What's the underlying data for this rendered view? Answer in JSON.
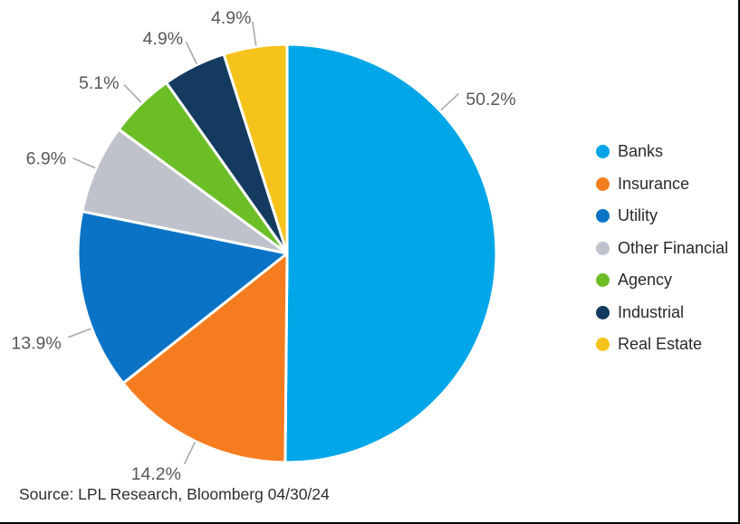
{
  "chart_data": {
    "type": "pie",
    "title": "",
    "categories": [
      "Banks",
      "Insurance",
      "Utility",
      "Other Financial",
      "Agency",
      "Industrial",
      "Real Estate"
    ],
    "values": [
      50.2,
      14.2,
      13.9,
      6.9,
      5.1,
      4.9,
      4.9
    ],
    "data_labels": [
      "50.2%",
      "14.2%",
      "13.9%",
      "6.9%",
      "5.1%",
      "4.9%",
      "4.9%"
    ],
    "colors": [
      "#00A6E8",
      "#F57D20",
      "#0A73C6",
      "#BFC2CA",
      "#6CBE27",
      "#143A60",
      "#F6C31D"
    ],
    "legend_position": "right",
    "layout": {
      "start_angle_deg_from_top": 0,
      "direction": "clockwise",
      "label_angles_deg": [
        47,
        206,
        249,
        294,
        316,
        334.5,
        351.5
      ],
      "leader_line_color": "#A7A9AC",
      "label_text_color": "#58595B",
      "slice_separator_color": "#ffffff"
    }
  },
  "source": {
    "text": "Source: LPL Research, Bloomberg 04/30/24"
  }
}
